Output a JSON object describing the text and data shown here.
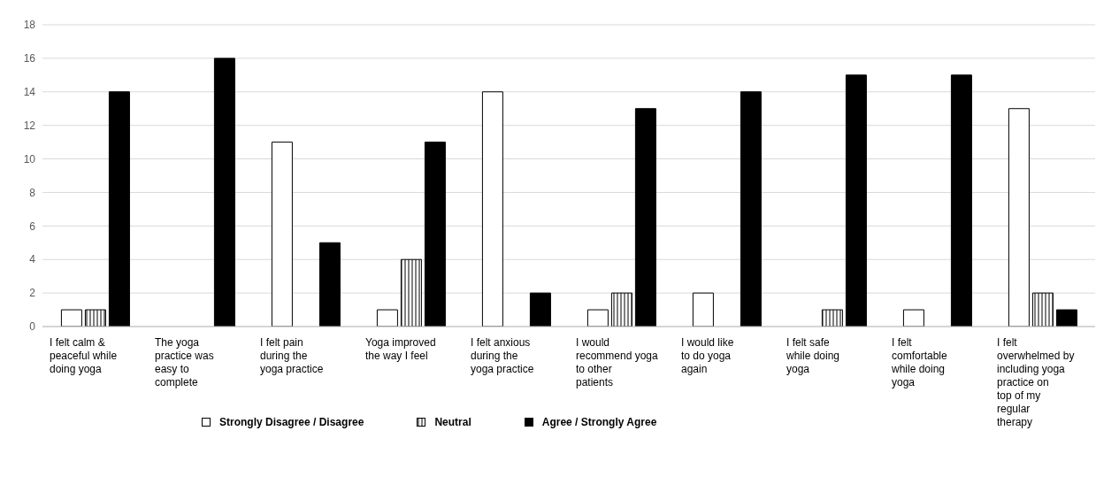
{
  "chart_data": {
    "type": "bar",
    "categories": [
      "I felt calm & peaceful while doing yoga",
      "The yoga practice was easy to complete",
      "I felt pain during the yoga practice",
      "Yoga improved the way I feel",
      "I felt anxious during the yoga practice",
      "I would recommend yoga to other patients",
      "I would like to do yoga again",
      "I felt safe while doing yoga",
      "I felt comfortable while doing yoga",
      "I felt overwhelmed by including yoga practice on top of my regular therapy"
    ],
    "series": [
      {
        "name": "Strongly Disagree / Disagree",
        "color": "#ffffff",
        "values": [
          1,
          0,
          11,
          1,
          14,
          1,
          2,
          0,
          1,
          13
        ]
      },
      {
        "name": "Neutral",
        "color": "#000000",
        "values": [
          1,
          0,
          0,
          4,
          0,
          2,
          0,
          1,
          0,
          2
        ]
      },
      {
        "name": "Agree / Strongly Agree",
        "color": "#000000",
        "values": [
          14,
          16,
          5,
          11,
          2,
          13,
          14,
          15,
          15,
          1
        ]
      }
    ],
    "ylim": [
      0,
      18
    ],
    "yticks": [
      0,
      2,
      4,
      6,
      8,
      10,
      12,
      14,
      16,
      18
    ],
    "grid": "y",
    "legend": "bottom"
  }
}
